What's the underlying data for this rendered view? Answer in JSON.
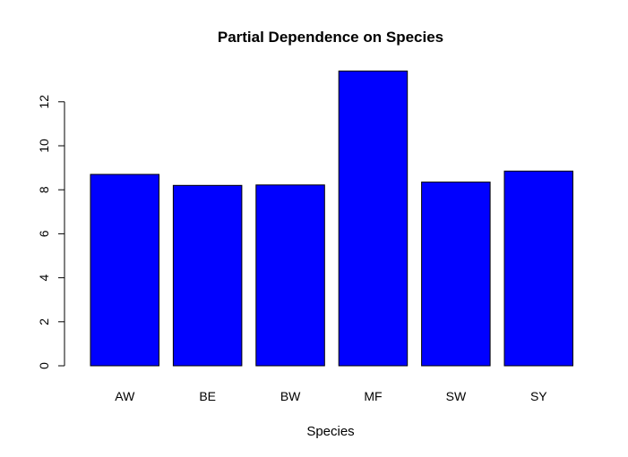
{
  "chart_data": {
    "type": "bar",
    "title": "Partial Dependence on Species",
    "xlabel": "Species",
    "ylabel": "",
    "categories": [
      "AW",
      "BE",
      "BW",
      "MF",
      "SW",
      "SY"
    ],
    "values": [
      8.7,
      8.2,
      8.22,
      13.4,
      8.35,
      8.85
    ],
    "ylim": [
      0,
      13.4
    ],
    "yticks": [
      0,
      2,
      4,
      6,
      8,
      10,
      12
    ],
    "bar_color": "#0000ff",
    "grid": false,
    "legend": "none"
  }
}
